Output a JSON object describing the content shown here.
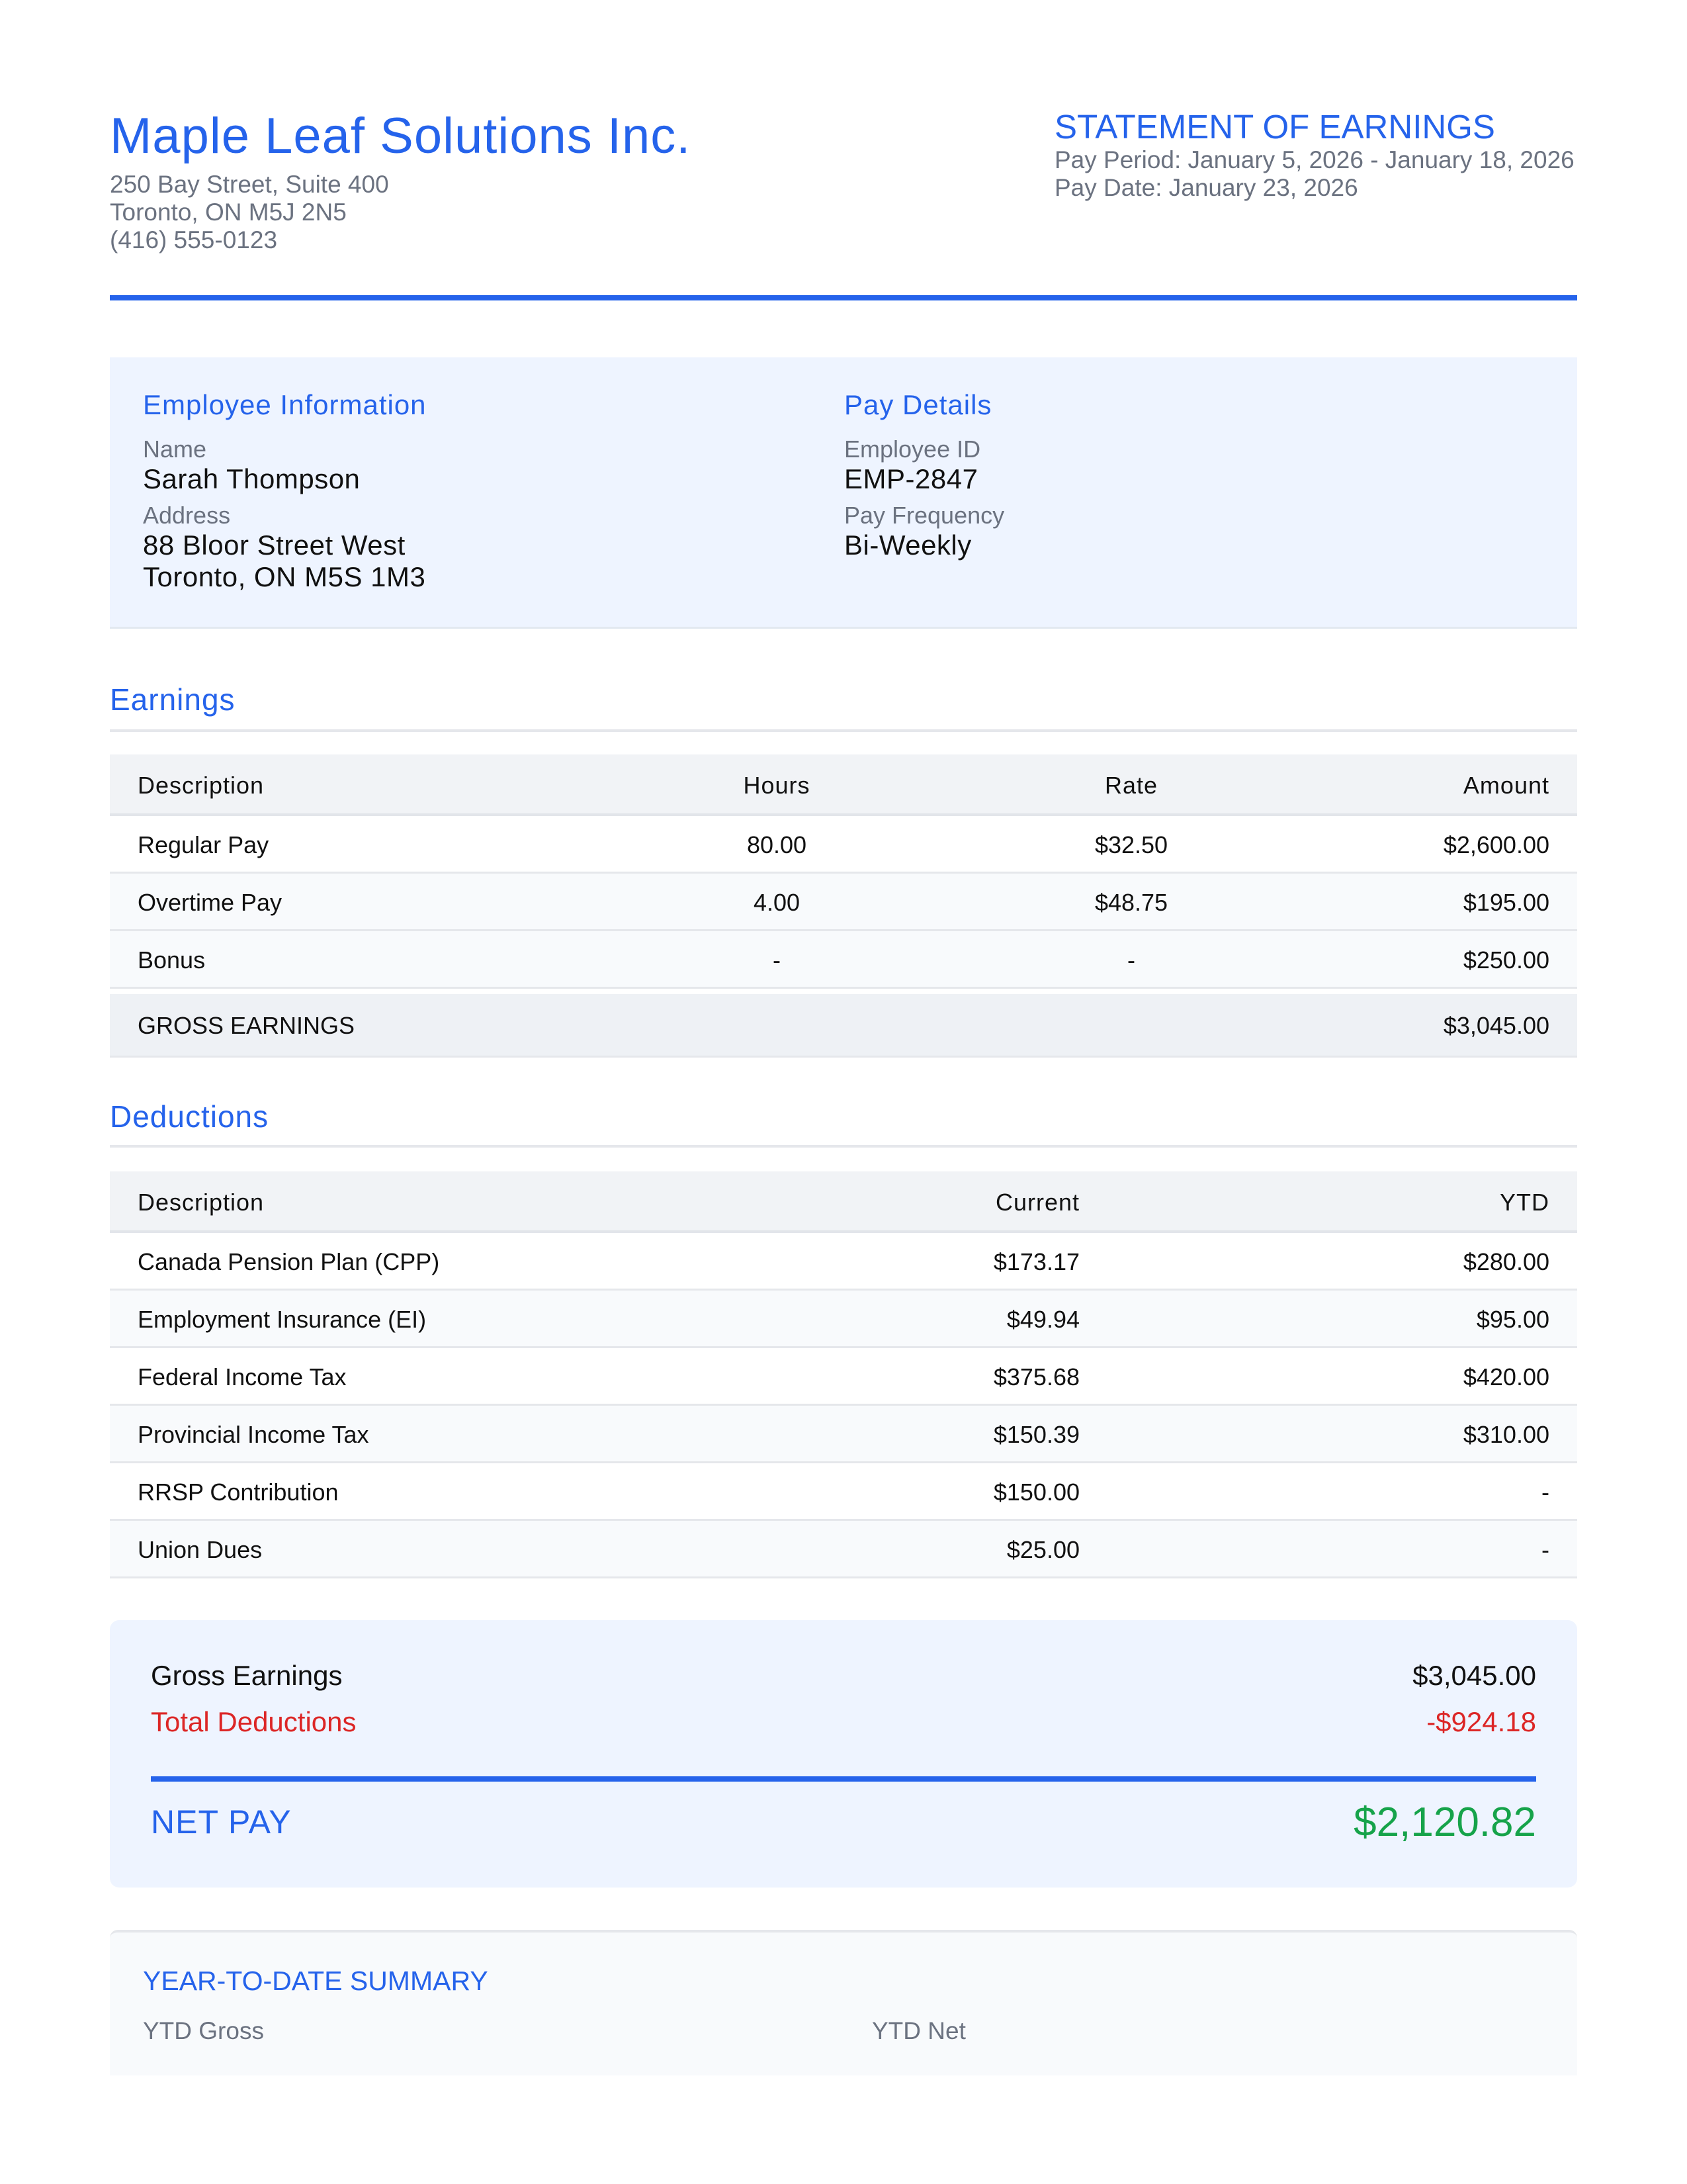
{
  "company": {
    "name": "Maple Leaf Solutions Inc.",
    "address_line1": "250 Bay Street, Suite 400",
    "address_line2": "Toronto, ON M5J 2N5",
    "phone": "(416) 555-0123"
  },
  "statement": {
    "title": "STATEMENT OF EARNINGS",
    "pay_period": "Pay Period: January 5, 2026 - January 18, 2026",
    "pay_date": "Pay Date: January 23, 2026"
  },
  "employee_info": {
    "heading": "Employee Information",
    "name_label": "Name",
    "name_value": "Sarah Thompson",
    "address_label": "Address",
    "address_line1": "88 Bloor Street West",
    "address_line2": "Toronto, ON M5S 1M3"
  },
  "pay_details": {
    "heading": "Pay Details",
    "employee_id_label": "Employee ID",
    "employee_id_value": "EMP-2847",
    "frequency_label": "Pay Frequency",
    "frequency_value": "Bi-Weekly"
  },
  "earnings": {
    "title": "Earnings",
    "headers": [
      "Description",
      "Hours",
      "Rate",
      "Amount"
    ],
    "rows": [
      [
        "Regular Pay",
        "80.00",
        "$32.50",
        "$2,600.00"
      ],
      [
        "Overtime Pay",
        "4.00",
        "$48.75",
        "$195.00"
      ],
      [
        "Bonus",
        "-",
        "-",
        "$250.00"
      ]
    ],
    "gross_label": "GROSS EARNINGS",
    "gross_value": "$3,045.00"
  },
  "deductions": {
    "title": "Deductions",
    "headers": [
      "Description",
      "Current",
      "YTD"
    ],
    "rows": [
      [
        "Canada Pension Plan (CPP)",
        "$173.17",
        "$280.00"
      ],
      [
        "Employment Insurance (EI)",
        "$49.94",
        "$95.00"
      ],
      [
        "Federal Income Tax",
        "$375.68",
        "$420.00"
      ],
      [
        "Provincial Income Tax",
        "$150.39",
        "$310.00"
      ],
      [
        "RRSP Contribution",
        "$150.00",
        "-"
      ],
      [
        "Union Dues",
        "$25.00",
        "-"
      ]
    ]
  },
  "summary": {
    "gross_label": "Gross Earnings",
    "gross_value": "$3,045.00",
    "deductions_label": "Total Deductions",
    "deductions_value": "-$924.18",
    "net_label": "NET PAY",
    "net_value": "$2,120.82"
  },
  "ytd": {
    "title": "YEAR-TO-DATE SUMMARY",
    "gross_label": "YTD Gross",
    "net_label": "YTD Net"
  },
  "colors": {
    "accent": "#2563eb",
    "negative": "#dc2626",
    "positive": "#16a34a",
    "muted": "#6b7280"
  }
}
